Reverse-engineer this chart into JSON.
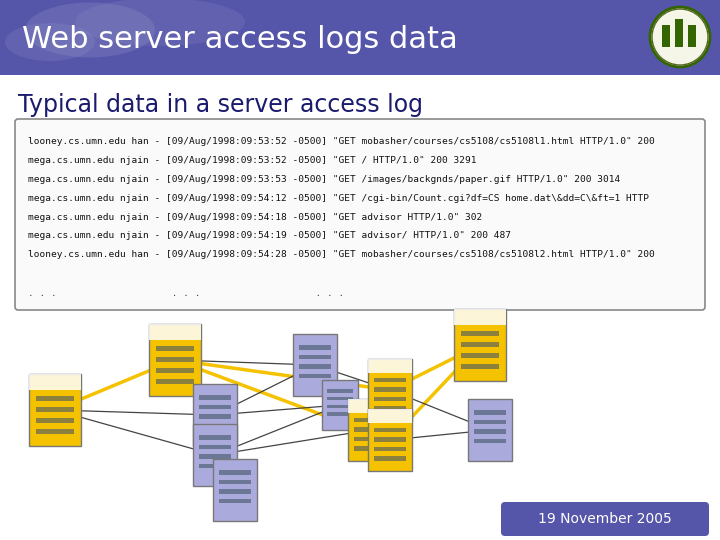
{
  "title": "Web server access logs data",
  "subtitle": "Typical data in a server access log",
  "header_bg_color": "#5555aa",
  "header_text_color": "#ffffff",
  "subtitle_color": "#1a1a6e",
  "log_lines": [
    "looney.cs.umn.edu han - [09/Aug/1998:09:53:52 -0500] \"GET mobasher/courses/cs5108/cs5108l1.html HTTP/1.0\" 200",
    "mega.cs.umn.edu njain - [09/Aug/1998:09:53:52 -0500] \"GET / HTTP/1.0\" 200 3291",
    "mega.cs.umn.edu njain - [09/Aug/1998:09:53:53 -0500] \"GET /images/backgnds/paper.gif HTTP/1.0\" 200 3014",
    "mega.cs.umn.edu njain - [09/Aug/1998:09:54:12 -0500] \"GET /cgi-bin/Count.cgi?df=CS home.dat\\&dd=C\\&ft=1 HTTP",
    "mega.cs.umn.edu njain - [09/Aug/1998:09:54:18 -0500] \"GET advisor HTTP/1.0\" 302",
    "mega.cs.umn.edu njain - [09/Aug/1998:09:54:19 -0500] \"GET advisor/ HTTP/1.0\" 200 487",
    "looney.cs.umn.edu han - [09/Aug/1998:09:54:28 -0500] \"GET mobasher/courses/cs5108/cs5108l2.html HTTP/1.0\" 200"
  ],
  "dots_line": ". . .                    . . .                    . . .",
  "footer_text": "19 November 2005",
  "bg_color": "#ffffff"
}
